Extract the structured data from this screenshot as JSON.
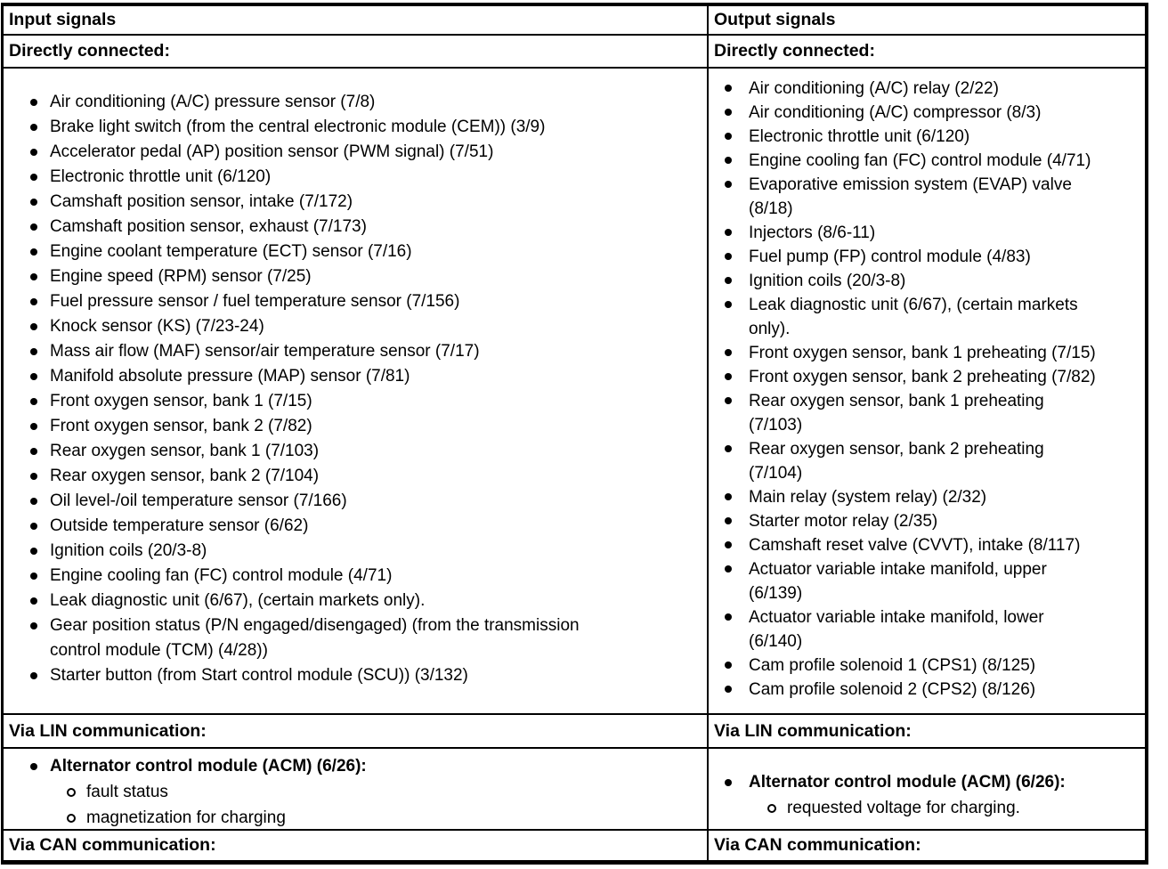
{
  "colors": {
    "text": "#000000",
    "background": "#ffffff",
    "border": "#000000"
  },
  "input": {
    "header": "Input signals",
    "directly_connected_label": "Directly connected:",
    "items": [
      "Air conditioning (A/C) pressure sensor (7/8)",
      "Brake light switch (from the central electronic module (CEM)) (3/9)",
      "Accelerator pedal (AP) position sensor (PWM signal) (7/51)",
      "Electronic throttle unit (6/120)",
      "Camshaft position sensor, intake (7/172)",
      "Camshaft position sensor, exhaust (7/173)",
      "Engine coolant temperature (ECT) sensor (7/16)",
      "Engine speed (RPM) sensor (7/25)",
      "Fuel pressure sensor / fuel temperature sensor (7/156)",
      "Knock sensor (KS) (7/23-24)",
      "Mass air flow (MAF) sensor/air temperature sensor (7/17)",
      "Manifold absolute pressure (MAP) sensor (7/81)",
      "Front oxygen sensor, bank 1 (7/15)",
      "Front oxygen sensor, bank 2 (7/82)",
      "Rear oxygen sensor, bank 1 (7/103)",
      "Rear oxygen sensor, bank 2 (7/104)",
      "Oil level-/oil temperature sensor (7/166)",
      "Outside temperature sensor (6/62)",
      "Ignition coils (20/3-8)",
      "Engine cooling fan (FC) control module (4/71)",
      "Leak diagnostic unit (6/67), (certain markets only).",
      "Gear position status (P/N engaged/disengaged) (from the transmission\ncontrol module (TCM) (4/28))",
      "Starter button (from Start control module (SCU)) (3/132)"
    ],
    "via_lin_label": "Via LIN communication:",
    "lin_module_title": "Alternator control module (ACM) (6/26):",
    "lin_sub_items": [
      "fault status",
      "magnetization for charging"
    ],
    "via_can_label": "Via CAN communication:"
  },
  "output": {
    "header": "Output signals",
    "directly_connected_label": "Directly connected:",
    "items": [
      "Air conditioning (A/C) relay (2/22)",
      "Air conditioning (A/C) compressor (8/3)",
      "Electronic throttle unit (6/120)",
      "Engine cooling fan (FC) control module (4/71)",
      "Evaporative emission system (EVAP) valve\n(8/18)",
      "Injectors (8/6-11)",
      "Fuel pump (FP) control module (4/83)",
      "Ignition coils (20/3-8)",
      "Leak diagnostic unit (6/67), (certain markets\nonly).",
      "Front oxygen sensor, bank 1 preheating (7/15)",
      "Front oxygen sensor, bank 2 preheating (7/82)",
      "Rear oxygen sensor, bank 1 preheating\n(7/103)",
      "Rear oxygen sensor, bank 2 preheating\n(7/104)",
      "Main relay (system relay) (2/32)",
      "Starter motor relay (2/35)",
      "Camshaft reset valve (CVVT), intake (8/117)",
      "Actuator variable intake manifold, upper\n(6/139)",
      "Actuator variable intake manifold, lower\n(6/140)",
      "Cam profile solenoid 1 (CPS1) (8/125)",
      "Cam profile solenoid 2 (CPS2) (8/126)"
    ],
    "via_lin_label": "Via LIN communication:",
    "lin_module_title": "Alternator control module (ACM) (6/26):",
    "lin_sub_items": [
      "requested voltage for charging."
    ],
    "via_can_label": "Via CAN communication:"
  }
}
